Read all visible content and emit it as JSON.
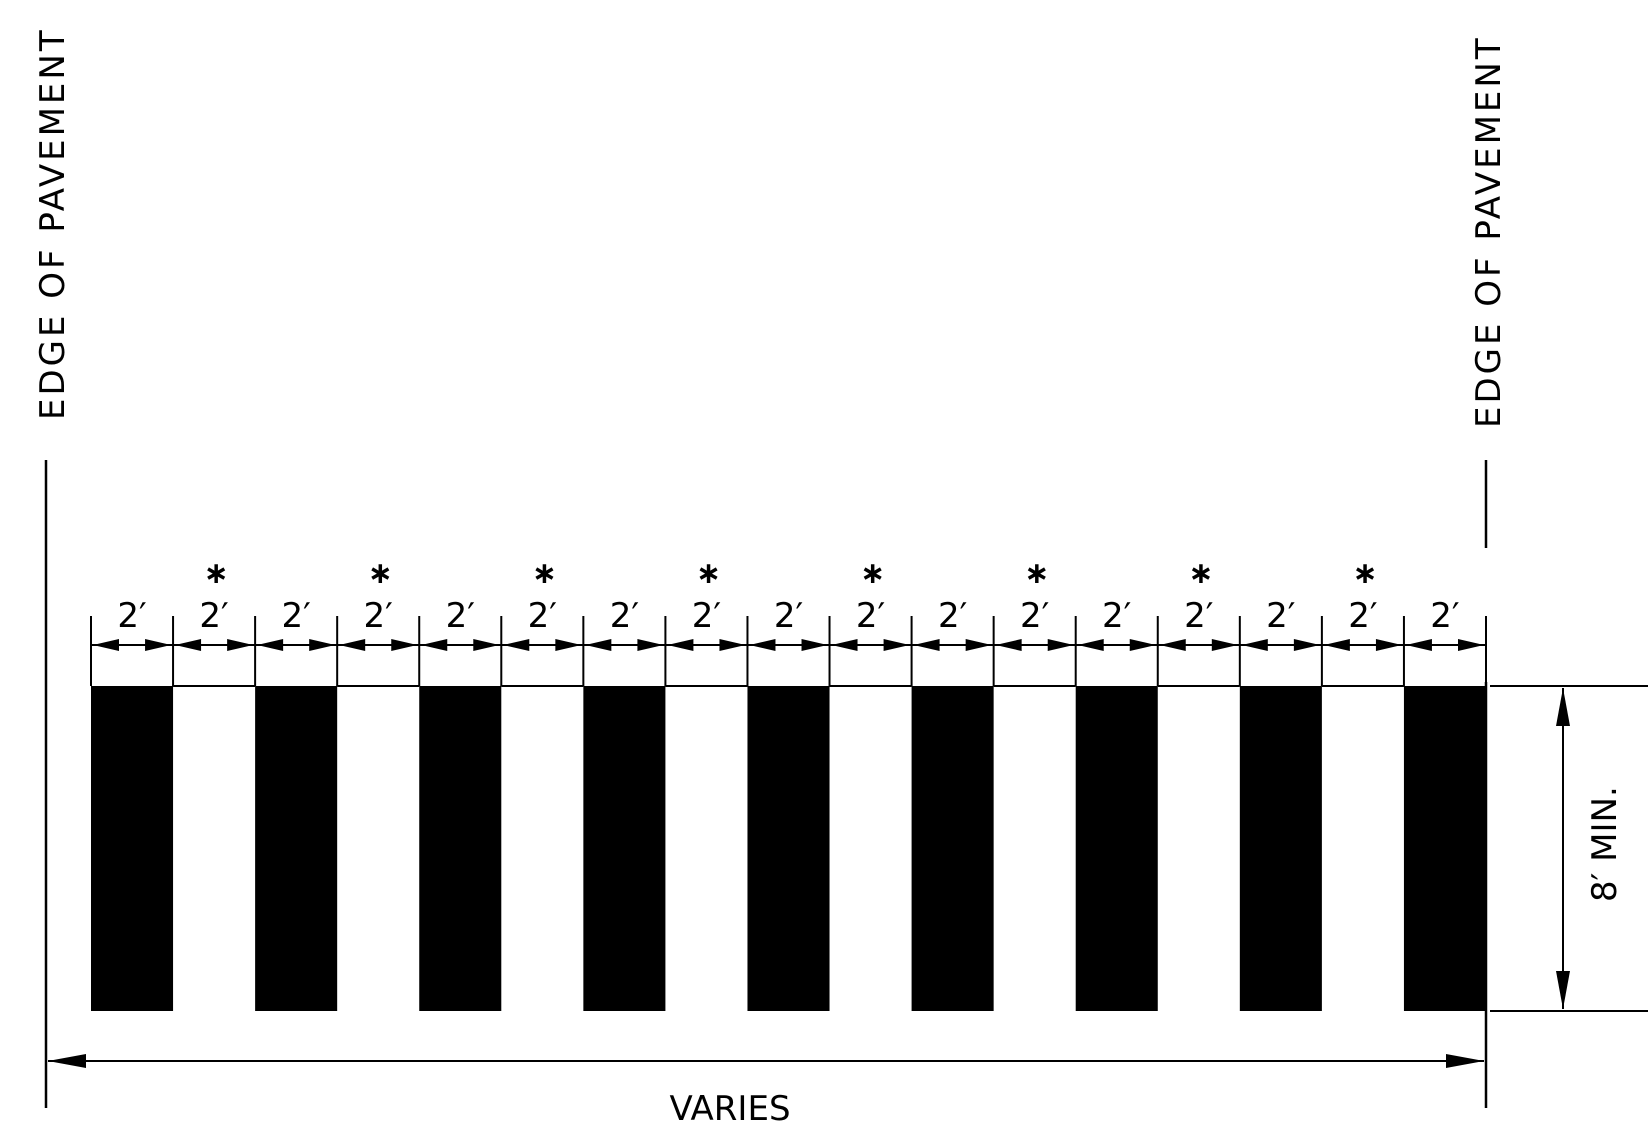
{
  "edge_left_label": "EDGE OF PAVEMENT",
  "edge_right_label": "EDGE OF PAVEMENT",
  "segment_width_label": "2′",
  "spacing_marker": "∗",
  "segment_count": 17,
  "stripe_count": 9,
  "height_label": "8′ MIN.",
  "total_width_label": "VARIES",
  "stripe_color": "#000000"
}
